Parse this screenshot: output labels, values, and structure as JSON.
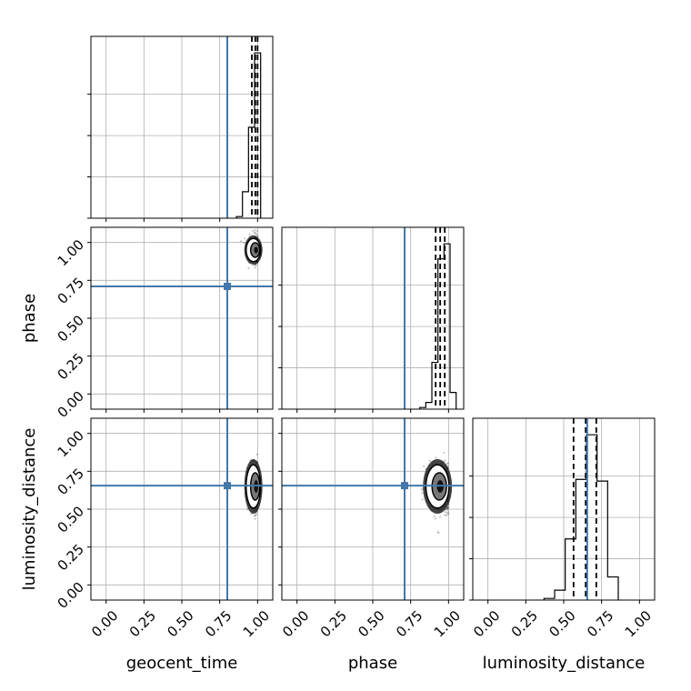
{
  "chart_data": {
    "type": "corner",
    "parameters": [
      "geocent_time",
      "phase",
      "luminosity_distance"
    ],
    "axis_labels": {
      "x": [
        "geocent_time",
        "phase",
        "luminosity_distance"
      ],
      "y": [
        "",
        "phase",
        "luminosity_distance"
      ]
    },
    "range": [
      -0.1,
      1.1
    ],
    "ticks": [
      0.0,
      0.25,
      0.5,
      0.75,
      1.0
    ],
    "tick_labels": [
      "0.00",
      "0.25",
      "0.50",
      "0.75",
      "1.00"
    ],
    "grid": true,
    "truth_color": "#4477aa",
    "truths": {
      "geocent_time": 0.8,
      "phase": 0.71,
      "luminosity_distance": 0.655
    },
    "quantiles": {
      "geocent_time": [
        0.962,
        0.985,
        1.0
      ],
      "phase": [
        0.915,
        0.945,
        0.975
      ],
      "luminosity_distance": [
        0.565,
        0.645,
        0.715
      ]
    },
    "histograms": {
      "geocent_time": {
        "bin_edges": [
          0.86,
          0.9,
          0.94,
          0.98,
          1.02
        ],
        "counts": [
          1,
          16,
          55,
          100
        ],
        "max_tick": 100
      },
      "phase": {
        "bin_edges": [
          0.81,
          0.85,
          0.89,
          0.93,
          0.97,
          1.01,
          1.05
        ],
        "counts": [
          1,
          4,
          28,
          90,
          99,
          10
        ],
        "max_tick": 99
      },
      "luminosity_distance": {
        "bin_edges": [
          0.37,
          0.44,
          0.51,
          0.58,
          0.65,
          0.72,
          0.79,
          0.86
        ],
        "counts": [
          1,
          6,
          37,
          73,
          100,
          72,
          14
        ],
        "max_tick": 100
      }
    },
    "scatter_2d": [
      {
        "x": "geocent_time",
        "y": "phase",
        "center": [
          0.99,
          0.95
        ],
        "spread": [
          0.025,
          0.04
        ]
      },
      {
        "x": "geocent_time",
        "y": "luminosity_distance",
        "center": [
          0.99,
          0.65
        ],
        "spread": [
          0.025,
          0.075
        ]
      },
      {
        "x": "phase",
        "y": "luminosity_distance",
        "center": [
          0.945,
          0.65
        ],
        "spread": [
          0.04,
          0.075
        ]
      }
    ]
  }
}
